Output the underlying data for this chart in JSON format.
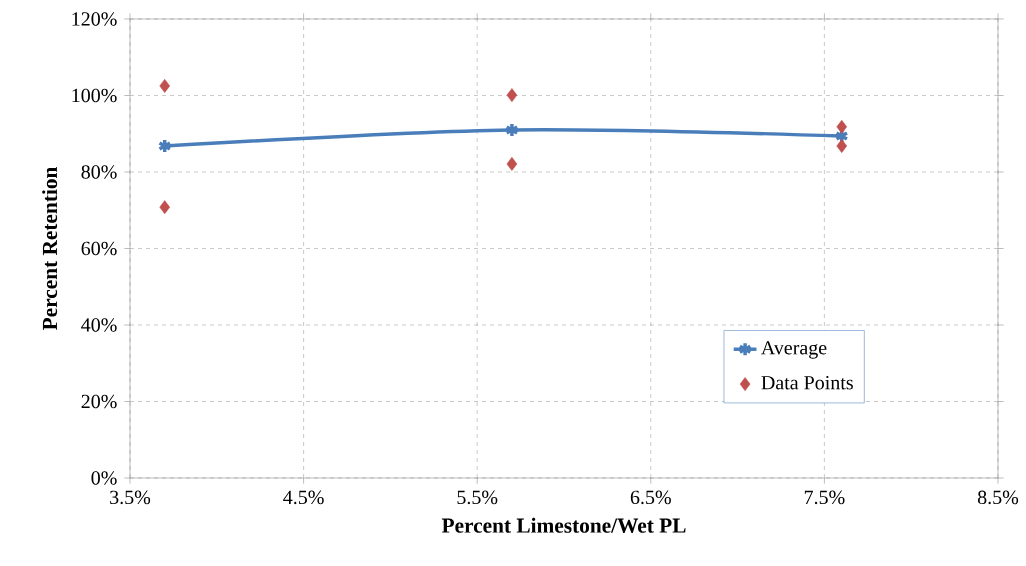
{
  "chart_data": {
    "type": "line",
    "xlabel": "Percent Limestone/Wet PL",
    "ylabel": "Percent Retention",
    "x": [
      3.7,
      5.7,
      7.6
    ],
    "series": [
      {
        "name": "Average",
        "color": "#4a7ebb",
        "marker": "cross",
        "line_style": "solid",
        "values": [
          86.8,
          91.0,
          89.4
        ]
      },
      {
        "name": "Data Points",
        "type": "scatter",
        "color": "#c0504d",
        "marker": "diamond",
        "x": [
          3.7,
          3.7,
          5.7,
          5.7,
          7.6,
          7.6
        ],
        "values": [
          102.5,
          70.8,
          100.1,
          82.1,
          91.8,
          86.8
        ]
      }
    ],
    "xlim": [
      3.5,
      8.5
    ],
    "xticks": [
      {
        "value": 3.5,
        "label": "3.5%"
      },
      {
        "value": 4.5,
        "label": "4.5%"
      },
      {
        "value": 5.5,
        "label": "5.5%"
      },
      {
        "value": 6.5,
        "label": "6.5%"
      },
      {
        "value": 7.5,
        "label": "7.5%"
      },
      {
        "value": 8.5,
        "label": "8.5%"
      }
    ],
    "ylim": [
      0,
      120
    ],
    "yticks": [
      {
        "value": 0,
        "label": "0%"
      },
      {
        "value": 20,
        "label": "20%"
      },
      {
        "value": 40,
        "label": "40%"
      },
      {
        "value": 60,
        "label": "60%"
      },
      {
        "value": 80,
        "label": "80%"
      },
      {
        "value": 100,
        "label": "100%"
      },
      {
        "value": 120,
        "label": "120%"
      }
    ],
    "grid": true,
    "legend": "bottom right"
  }
}
